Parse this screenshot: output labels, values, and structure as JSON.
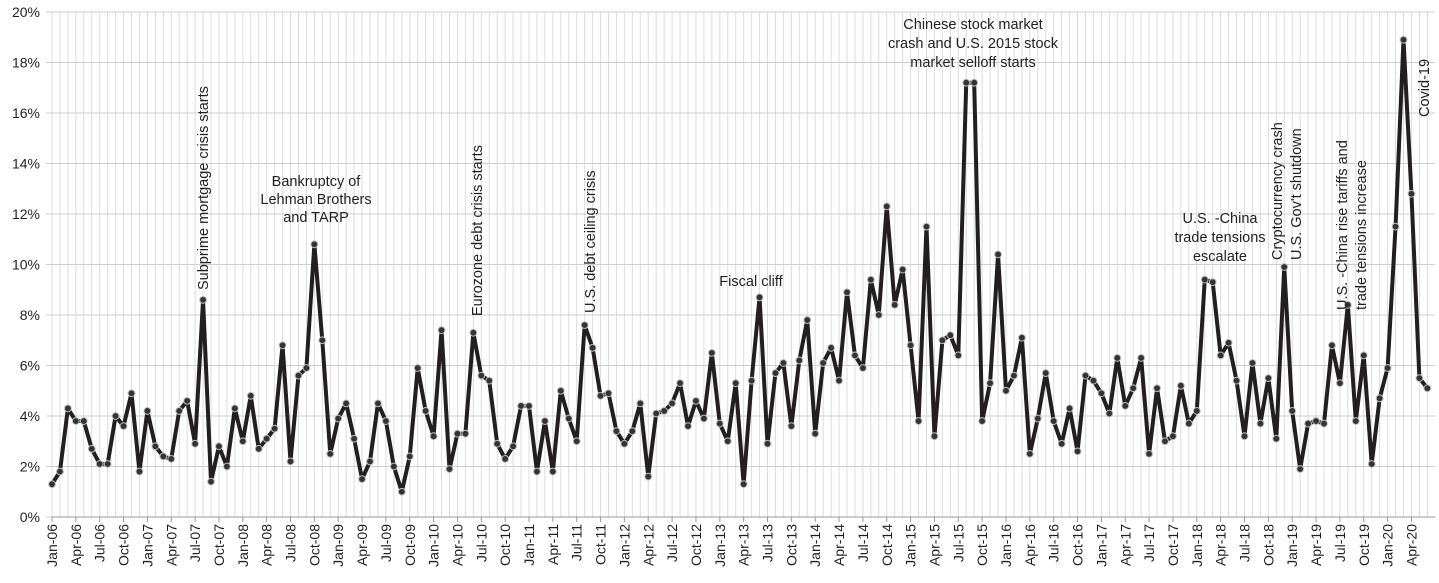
{
  "chart_data": {
    "type": "line",
    "color": "#231f20",
    "marker_color": "#333333",
    "grid": true,
    "ylim": [
      0,
      20
    ],
    "yticks": [
      {
        "value": 0,
        "label": "0%"
      },
      {
        "value": 2,
        "label": "2%"
      },
      {
        "value": 4,
        "label": "4%"
      },
      {
        "value": 6,
        "label": "6%"
      },
      {
        "value": 8,
        "label": "8%"
      },
      {
        "value": 10,
        "label": "10%"
      },
      {
        "value": 12,
        "label": "12%"
      },
      {
        "value": 14,
        "label": "14%"
      },
      {
        "value": 16,
        "label": "16%"
      },
      {
        "value": 18,
        "label": "18%"
      },
      {
        "value": 20,
        "label": "20%"
      }
    ],
    "categories": [
      "Jan-06",
      null,
      null,
      "Apr-06",
      null,
      null,
      "Jul-06",
      null,
      null,
      "Oct-06",
      null,
      null,
      "Jan-07",
      null,
      null,
      "Apr-07",
      null,
      null,
      "Jul-07",
      null,
      null,
      "Oct-07",
      null,
      null,
      "Jan-08",
      null,
      null,
      "Apr-08",
      null,
      null,
      "Jul-08",
      null,
      null,
      "Oct-08",
      null,
      null,
      "Jan-09",
      null,
      null,
      "Apr-09",
      null,
      null,
      "Jul-09",
      null,
      null,
      "Oct-09",
      null,
      null,
      "Jan-10",
      null,
      null,
      "Apr-10",
      null,
      null,
      "Jul-10",
      null,
      null,
      "Oct-10",
      null,
      null,
      "Jan-11",
      null,
      null,
      "Apr-11",
      null,
      null,
      "Jul-11",
      null,
      null,
      "Oct-11",
      null,
      null,
      "Jan-12",
      null,
      null,
      "Apr-12",
      null,
      null,
      "Jul-12",
      null,
      null,
      "Oct-12",
      null,
      null,
      "Jan-13",
      null,
      null,
      "Apr-13",
      null,
      null,
      "Jul-13",
      null,
      null,
      "Oct-13",
      null,
      null,
      "Jan-14",
      null,
      null,
      "Apr-14",
      null,
      null,
      "Jul-14",
      null,
      null,
      "Oct-14",
      null,
      null,
      "Jan-15",
      null,
      null,
      "Apr-15",
      null,
      null,
      "Jul-15",
      null,
      null,
      "Oct-15",
      null,
      null,
      "Jan-16",
      null,
      null,
      "Apr-16",
      null,
      null,
      "Jul-16",
      null,
      null,
      "Oct-16",
      null,
      null,
      "Jan-17",
      null,
      null,
      "Apr-17",
      null,
      null,
      "Jul-17",
      null,
      null,
      "Oct-17",
      null,
      null,
      "Jan-18",
      null,
      null,
      "Apr-18",
      null,
      null,
      "Jul-18",
      null,
      null,
      "Oct-18",
      null,
      null,
      "Jan-19",
      null,
      null,
      "Apr-19",
      null,
      null,
      "Jul-19",
      null,
      null,
      "Oct-19",
      null,
      null,
      "Jan-20",
      null,
      null,
      "Apr-20",
      null,
      null
    ],
    "values": [
      1.3,
      1.8,
      4.3,
      3.8,
      3.8,
      2.7,
      2.1,
      2.1,
      4.0,
      3.6,
      4.9,
      1.8,
      4.2,
      2.8,
      2.4,
      2.3,
      4.2,
      4.6,
      2.9,
      8.6,
      1.4,
      2.8,
      2.0,
      4.3,
      3.0,
      4.8,
      2.7,
      3.1,
      3.5,
      6.8,
      2.2,
      5.6,
      5.9,
      10.8,
      7.0,
      2.5,
      3.9,
      4.5,
      3.1,
      1.5,
      2.2,
      4.5,
      3.8,
      2.0,
      1.0,
      2.4,
      5.9,
      4.2,
      3.2,
      7.4,
      1.9,
      3.3,
      3.3,
      7.3,
      5.6,
      5.4,
      2.9,
      2.3,
      2.8,
      4.4,
      4.4,
      1.8,
      3.8,
      1.8,
      5.0,
      3.9,
      3.0,
      7.6,
      6.7,
      4.8,
      4.9,
      3.4,
      2.9,
      3.4,
      4.5,
      1.6,
      4.1,
      4.2,
      4.5,
      5.3,
      3.6,
      4.6,
      3.9,
      6.5,
      3.7,
      3.0,
      5.3,
      1.3,
      5.4,
      8.7,
      2.9,
      5.7,
      6.1,
      3.6,
      6.2,
      7.8,
      3.3,
      6.1,
      6.7,
      5.4,
      8.9,
      6.4,
      5.9,
      9.4,
      8.0,
      12.3,
      8.4,
      9.8,
      6.8,
      3.8,
      11.5,
      3.2,
      7.0,
      7.2,
      6.4,
      17.2,
      17.2,
      3.8,
      5.3,
      10.4,
      5.0,
      5.6,
      7.1,
      2.5,
      3.9,
      5.7,
      3.8,
      2.9,
      4.3,
      2.6,
      5.6,
      5.4,
      4.9,
      4.1,
      6.3,
      4.4,
      5.1,
      6.3,
      2.5,
      5.1,
      3.0,
      3.2,
      5.2,
      3.7,
      4.2,
      9.4,
      9.3,
      6.4,
      6.9,
      5.4,
      3.2,
      6.1,
      3.7,
      5.5,
      3.1,
      9.9,
      4.2,
      1.9,
      3.7,
      3.8,
      3.7,
      6.8,
      5.3,
      8.4,
      3.8,
      6.4,
      2.1,
      4.7,
      5.9,
      11.5,
      18.9,
      12.8,
      5.5,
      5.1
    ],
    "annotations": [
      {
        "lines": [
          "Subprime mortgage crisis starts"
        ]
      },
      {
        "lines": [
          "Bankruptcy of",
          "Lehman Brothers",
          "and TARP"
        ]
      },
      {
        "lines": [
          "Eurozone debt crisis starts"
        ]
      },
      {
        "lines": [
          "U.S. debt ceiling crisis"
        ]
      },
      {
        "lines": [
          "Fiscal cliff"
        ]
      },
      {
        "lines": [
          "Chinese stock market",
          "crash and U.S. 2015 stock",
          "market selloff starts"
        ]
      },
      {
        "lines": [
          "U.S. -China",
          "trade tensions",
          "escalate"
        ]
      },
      {
        "lines": [
          "Cryptocurrency crash",
          "U.S. Gov't shutdown"
        ]
      },
      {
        "lines": [
          "U.S. -China rise tariffs and",
          "trade tensions increase"
        ]
      },
      {
        "lines": [
          "Covid-19"
        ]
      }
    ]
  }
}
